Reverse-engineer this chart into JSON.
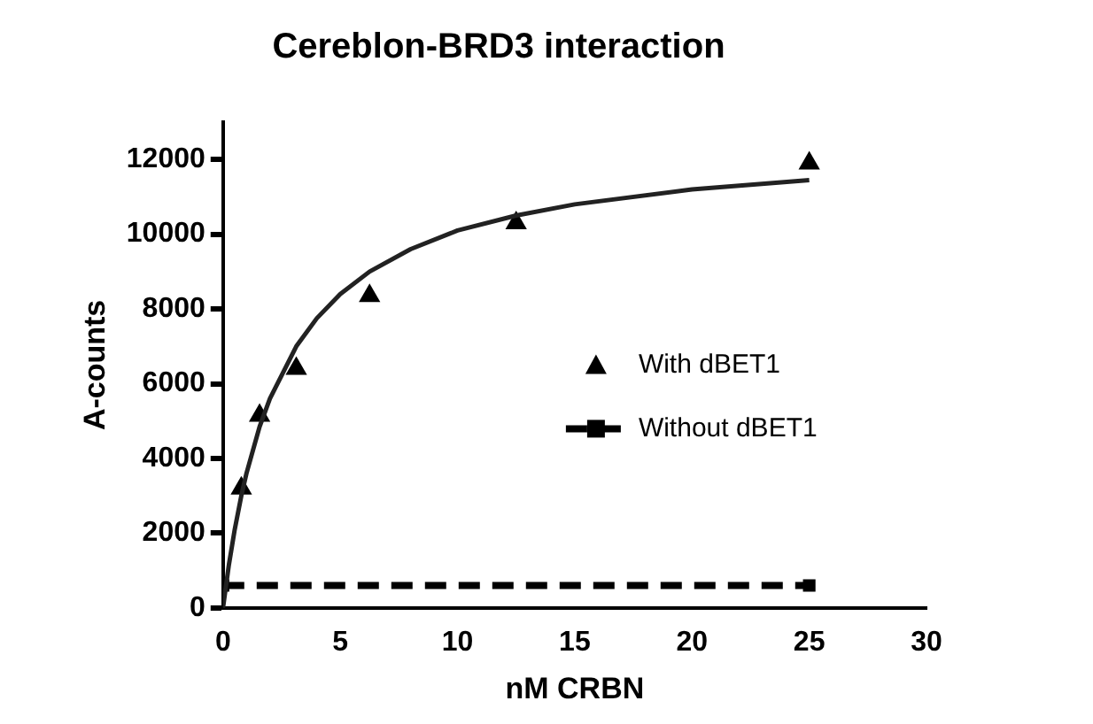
{
  "chart_data": {
    "type": "scatter",
    "title": "Cereblon-BRD3 interaction",
    "xlabel": "nM CRBN",
    "ylabel": "A-counts",
    "xlim": [
      0,
      30
    ],
    "xticks": [
      0,
      5,
      10,
      15,
      20,
      25,
      30
    ],
    "ylim": [
      0,
      13000
    ],
    "yticks": [
      0,
      2000,
      4000,
      6000,
      8000,
      10000,
      12000
    ],
    "grid": false,
    "legend": "right",
    "series": [
      {
        "type": "line",
        "color": "#222222",
        "marker": "none",
        "line_style": "solid",
        "x": [
          0,
          0.25,
          0.5,
          0.78,
          1,
          1.56,
          2,
          3.125,
          4,
          5,
          6.25,
          8,
          10,
          12.5,
          15,
          20,
          25
        ],
        "values": [
          0,
          1150,
          2100,
          3000,
          3600,
          4850,
          5600,
          7000,
          7750,
          8400,
          9000,
          9600,
          10100,
          10500,
          10800,
          11200,
          11450
        ]
      },
      {
        "name": "With dBET1",
        "type": "scatter",
        "color": "#000000",
        "marker": "triangle",
        "x": [
          0.78,
          1.56,
          3.125,
          6.25,
          12.5,
          25
        ],
        "values": [
          3200,
          5150,
          6400,
          8350,
          10300,
          11900
        ]
      },
      {
        "name": "Without dBET1",
        "type": "line",
        "color": "#000000",
        "marker": "square",
        "line_style": "dashed",
        "x": [
          0,
          25
        ],
        "values": [
          600,
          600
        ]
      }
    ]
  }
}
